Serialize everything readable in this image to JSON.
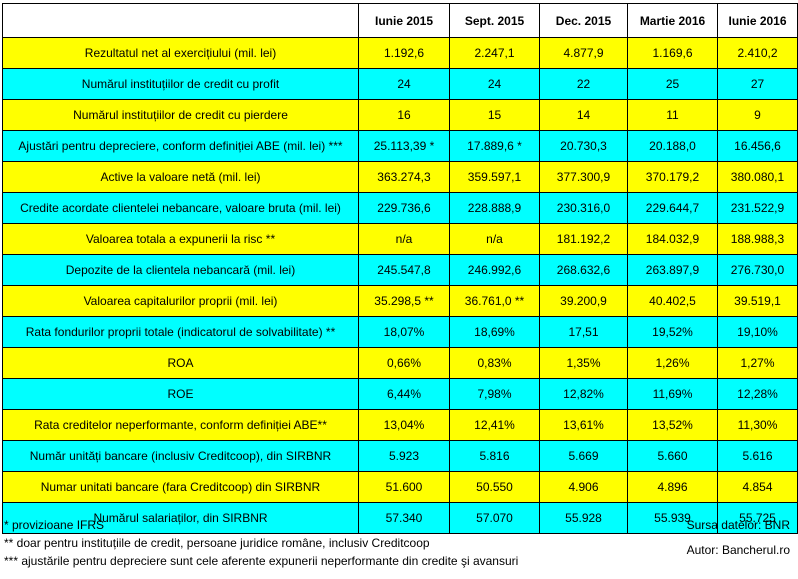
{
  "table": {
    "headers": [
      "Iunie 2015",
      "Sept. 2015",
      "Dec. 2015",
      "Martie 2016",
      "Iunie 2016"
    ],
    "rows": [
      {
        "label": "Rezultatul net al exercițiului (mil. lei)",
        "color": "#ffff00",
        "values": [
          "1.192,6",
          "2.247,1",
          "4.877,9",
          "1.169,6",
          "2.410,2"
        ]
      },
      {
        "label": "Numărul instituțiilor de credit cu profit",
        "color": "#00ffff",
        "values": [
          "24",
          "24",
          "22",
          "25",
          "27"
        ]
      },
      {
        "label": "Numărul instituțiilor de credit cu pierdere",
        "color": "#ffff00",
        "values": [
          "16",
          "15",
          "14",
          "11",
          "9"
        ]
      },
      {
        "label": "Ajustări pentru depreciere, conform definiției ABE (mil. lei) ***",
        "color": "#00ffff",
        "values": [
          "25.113,39 *",
          "17.889,6 *",
          "20.730,3",
          "20.188,0",
          "16.456,6"
        ]
      },
      {
        "label": "Active la valoare netă (mil. lei)",
        "color": "#ffff00",
        "values": [
          "363.274,3",
          "359.597,1",
          "377.300,9",
          "370.179,2",
          "380.080,1"
        ]
      },
      {
        "label": "Credite acordate clientelei nebancare, valoare bruta (mil. lei)",
        "color": "#00ffff",
        "values": [
          "229.736,6",
          "228.888,9",
          "230.316,0",
          "229.644,7",
          "231.522,9"
        ]
      },
      {
        "label": "Valoarea totala a expunerii la risc **",
        "color": "#ffff00",
        "values": [
          "n/a",
          "n/a",
          "181.192,2",
          "184.032,9",
          "188.988,3"
        ]
      },
      {
        "label": "Depozite de la clientela nebancară (mil. lei)",
        "color": "#00ffff",
        "values": [
          "245.547,8",
          "246.992,6",
          "268.632,6",
          "263.897,9",
          "276.730,0"
        ]
      },
      {
        "label": "Valoarea capitalurilor proprii  (mil. lei)",
        "color": "#ffff00",
        "values": [
          "35.298,5 **",
          "36.761,0 **",
          "39.200,9",
          "40.402,5",
          "39.519,1"
        ]
      },
      {
        "label": "Rata fondurilor proprii totale (indicatorul de solvabilitate) **",
        "color": "#00ffff",
        "values": [
          "18,07%",
          "18,69%",
          "17,51",
          "19,52%",
          "19,10%"
        ]
      },
      {
        "label": "ROA",
        "color": "#ffff00",
        "values": [
          "0,66%",
          "0,83%",
          "1,35%",
          "1,26%",
          "1,27%"
        ]
      },
      {
        "label": "ROE",
        "color": "#00ffff",
        "values": [
          "6,44%",
          "7,98%",
          "12,82%",
          "11,69%",
          "12,28%"
        ]
      },
      {
        "label": "Rata creditelor neperformante, conform definiției ABE**",
        "color": "#ffff00",
        "values": [
          "13,04%",
          "12,41%",
          "13,61%",
          "13,52%",
          "11,30%"
        ]
      },
      {
        "label": "Număr unități bancare (inclusiv Creditcoop), din SIRBNR",
        "color": "#00ffff",
        "values": [
          "5.923",
          "5.816",
          "5.669",
          "5.660",
          "5.616"
        ]
      },
      {
        "label": "Numar unitati bancare (fara Creditcoop) din SIRBNR",
        "color": "#ffff00",
        "values": [
          "51.600",
          "50.550",
          "4.906",
          "4.896",
          "4.854"
        ]
      },
      {
        "label": "Numărul salariaților, din SIRBNR",
        "color": "#00ffff",
        "values": [
          "57.340",
          "57.070",
          "55.928",
          "55.939",
          "55.725"
        ]
      }
    ]
  },
  "footnotes": {
    "note1": "* provizioane IFRS",
    "note2": "** doar pentru instituțiile de credit, persoane juridice române, inclusiv Creditcoop",
    "note3": "*** ajustările pentru depreciere sunt cele aferente expunerii neperformante din credite şi avansuri"
  },
  "credits": {
    "source": "Sursa datelor: BNR",
    "author": "Autor: Bancherul.ro"
  }
}
